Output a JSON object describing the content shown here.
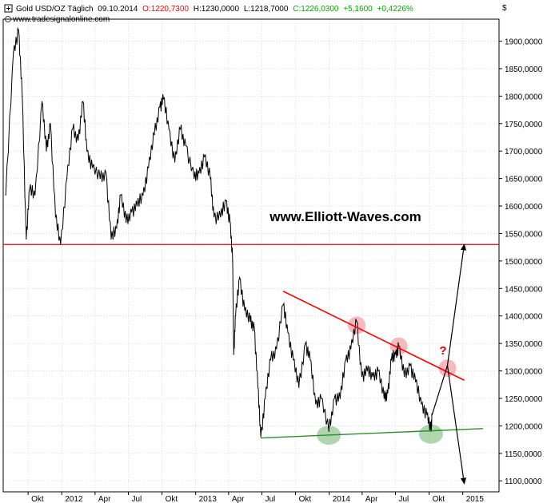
{
  "header": {
    "instrument": "Gold USD/OZ Täglich",
    "date": "09.10.2014",
    "open": "O:1220,7300",
    "high": "H:1230,0000",
    "low": "L:1218,7000",
    "close": "C:1226,0300",
    "change": "+5,1600",
    "change_pct": "+0,4226%",
    "source": "www.tradesignalonline.com",
    "currency": "$"
  },
  "watermark": "www.Elliott-Waves.com",
  "annotation": "?",
  "colors": {
    "open": "#ff0000",
    "close": "#00aa00",
    "resistance": "#dd0000",
    "support": "#2e8b2e",
    "price": "#000000",
    "grid": "#c8c8c8",
    "pink_marker": "#f4a0a8",
    "green_marker": "#8fc48f"
  },
  "chart_data": {
    "type": "line",
    "ylim": [
      1080,
      1940
    ],
    "y_ticks": [
      "1900,0000",
      "1850,0000",
      "1800,0000",
      "1750,0000",
      "1700,0000",
      "1650,0000",
      "1600,0000",
      "1550,0000",
      "1500,0000",
      "1450,0000",
      "1400,0000",
      "1350,0000",
      "1300,0000",
      "1250,0000",
      "1200,0000",
      "1150,0000",
      "1100,0000"
    ],
    "y_tick_values": [
      1900,
      1850,
      1800,
      1750,
      1700,
      1650,
      1600,
      1550,
      1500,
      1450,
      1400,
      1350,
      1300,
      1250,
      1200,
      1150,
      1100
    ],
    "x_ticks": [
      "Okt",
      "2012",
      "Apr",
      "Jul",
      "Okt",
      "2013",
      "Apr",
      "Jul",
      "Okt",
      "2014",
      "Apr",
      "Jul",
      "Okt",
      "2015"
    ],
    "x_tick_dates": [
      "2011-10-01",
      "2012-01-01",
      "2012-04-01",
      "2012-07-01",
      "2012-10-01",
      "2013-01-01",
      "2013-04-01",
      "2013-07-01",
      "2013-10-01",
      "2014-01-01",
      "2014-04-01",
      "2014-07-01",
      "2014-10-01",
      "2015-01-01"
    ],
    "series": [
      {
        "values": [
          [
            "2011-08-01",
            1620
          ],
          [
            "2011-08-22",
            1880
          ],
          [
            "2011-09-05",
            1920
          ],
          [
            "2011-09-15",
            1800
          ],
          [
            "2011-09-26",
            1540
          ],
          [
            "2011-10-05",
            1630
          ],
          [
            "2011-10-20",
            1620
          ],
          [
            "2011-11-08",
            1790
          ],
          [
            "2011-11-20",
            1700
          ],
          [
            "2011-12-01",
            1750
          ],
          [
            "2011-12-15",
            1580
          ],
          [
            "2011-12-29",
            1530
          ],
          [
            "2012-01-15",
            1650
          ],
          [
            "2012-01-31",
            1740
          ],
          [
            "2012-02-15",
            1720
          ],
          [
            "2012-02-28",
            1790
          ],
          [
            "2012-03-10",
            1700
          ],
          [
            "2012-03-25",
            1670
          ],
          [
            "2012-04-15",
            1650
          ],
          [
            "2012-05-01",
            1660
          ],
          [
            "2012-05-15",
            1540
          ],
          [
            "2012-05-30",
            1560
          ],
          [
            "2012-06-10",
            1620
          ],
          [
            "2012-06-25",
            1570
          ],
          [
            "2012-07-10",
            1590
          ],
          [
            "2012-07-25",
            1600
          ],
          [
            "2012-08-10",
            1620
          ],
          [
            "2012-08-25",
            1670
          ],
          [
            "2012-09-10",
            1730
          ],
          [
            "2012-09-25",
            1780
          ],
          [
            "2012-10-05",
            1795
          ],
          [
            "2012-10-20",
            1740
          ],
          [
            "2012-11-05",
            1680
          ],
          [
            "2012-11-20",
            1740
          ],
          [
            "2012-12-05",
            1710
          ],
          [
            "2012-12-28",
            1650
          ],
          [
            "2013-01-10",
            1660
          ],
          [
            "2013-01-25",
            1690
          ],
          [
            "2013-02-10",
            1650
          ],
          [
            "2013-02-20",
            1580
          ],
          [
            "2013-03-10",
            1580
          ],
          [
            "2013-03-25",
            1610
          ],
          [
            "2013-04-05",
            1570
          ],
          [
            "2013-04-12",
            1500
          ],
          [
            "2013-04-15",
            1330
          ],
          [
            "2013-04-20",
            1400
          ],
          [
            "2013-05-01",
            1470
          ],
          [
            "2013-05-15",
            1410
          ],
          [
            "2013-05-30",
            1390
          ],
          [
            "2013-06-10",
            1380
          ],
          [
            "2013-06-20",
            1270
          ],
          [
            "2013-06-28",
            1180
          ],
          [
            "2013-07-10",
            1250
          ],
          [
            "2013-07-25",
            1320
          ],
          [
            "2013-08-10",
            1340
          ],
          [
            "2013-08-28",
            1420
          ],
          [
            "2013-09-10",
            1370
          ],
          [
            "2013-09-25",
            1320
          ],
          [
            "2013-10-10",
            1270
          ],
          [
            "2013-10-28",
            1350
          ],
          [
            "2013-11-10",
            1320
          ],
          [
            "2013-11-25",
            1240
          ],
          [
            "2013-12-10",
            1250
          ],
          [
            "2013-12-31",
            1190
          ],
          [
            "2014-01-15",
            1250
          ],
          [
            "2014-01-31",
            1250
          ],
          [
            "2014-02-15",
            1320
          ],
          [
            "2014-03-01",
            1340
          ],
          [
            "2014-03-17",
            1390
          ],
          [
            "2014-03-31",
            1290
          ],
          [
            "2014-04-15",
            1300
          ],
          [
            "2014-04-30",
            1290
          ],
          [
            "2014-05-15",
            1300
          ],
          [
            "2014-05-31",
            1250
          ],
          [
            "2014-06-10",
            1260
          ],
          [
            "2014-06-20",
            1320
          ],
          [
            "2014-07-01",
            1330
          ],
          [
            "2014-07-10",
            1345
          ],
          [
            "2014-07-25",
            1290
          ],
          [
            "2014-08-10",
            1310
          ],
          [
            "2014-08-25",
            1280
          ],
          [
            "2014-09-10",
            1240
          ],
          [
            "2014-09-25",
            1220
          ],
          [
            "2014-10-06",
            1190
          ],
          [
            "2014-10-09",
            1220
          ]
        ]
      }
    ],
    "horizontal_line": 1530,
    "resistance_line": [
      [
        "2013-08-28",
        1445
      ],
      [
        "2015-01-05",
        1283
      ]
    ],
    "support_line": [
      [
        "2013-06-28",
        1178
      ],
      [
        "2015-02-25",
        1195
      ]
    ],
    "projection_up": [
      [
        "2014-10-09",
        1220
      ],
      [
        "2014-11-20",
        1310
      ],
      [
        "2015-01-05",
        1530
      ]
    ],
    "projection_down": [
      [
        "2014-11-20",
        1310
      ],
      [
        "2015-01-05",
        1095
      ]
    ],
    "markers_pink": [
      [
        "2014-03-17",
        1383
      ],
      [
        "2014-07-10",
        1345
      ],
      [
        "2014-11-20",
        1305
      ]
    ],
    "markers_green": [
      [
        "2013-12-31",
        1183
      ],
      [
        "2014-10-06",
        1185
      ]
    ]
  }
}
